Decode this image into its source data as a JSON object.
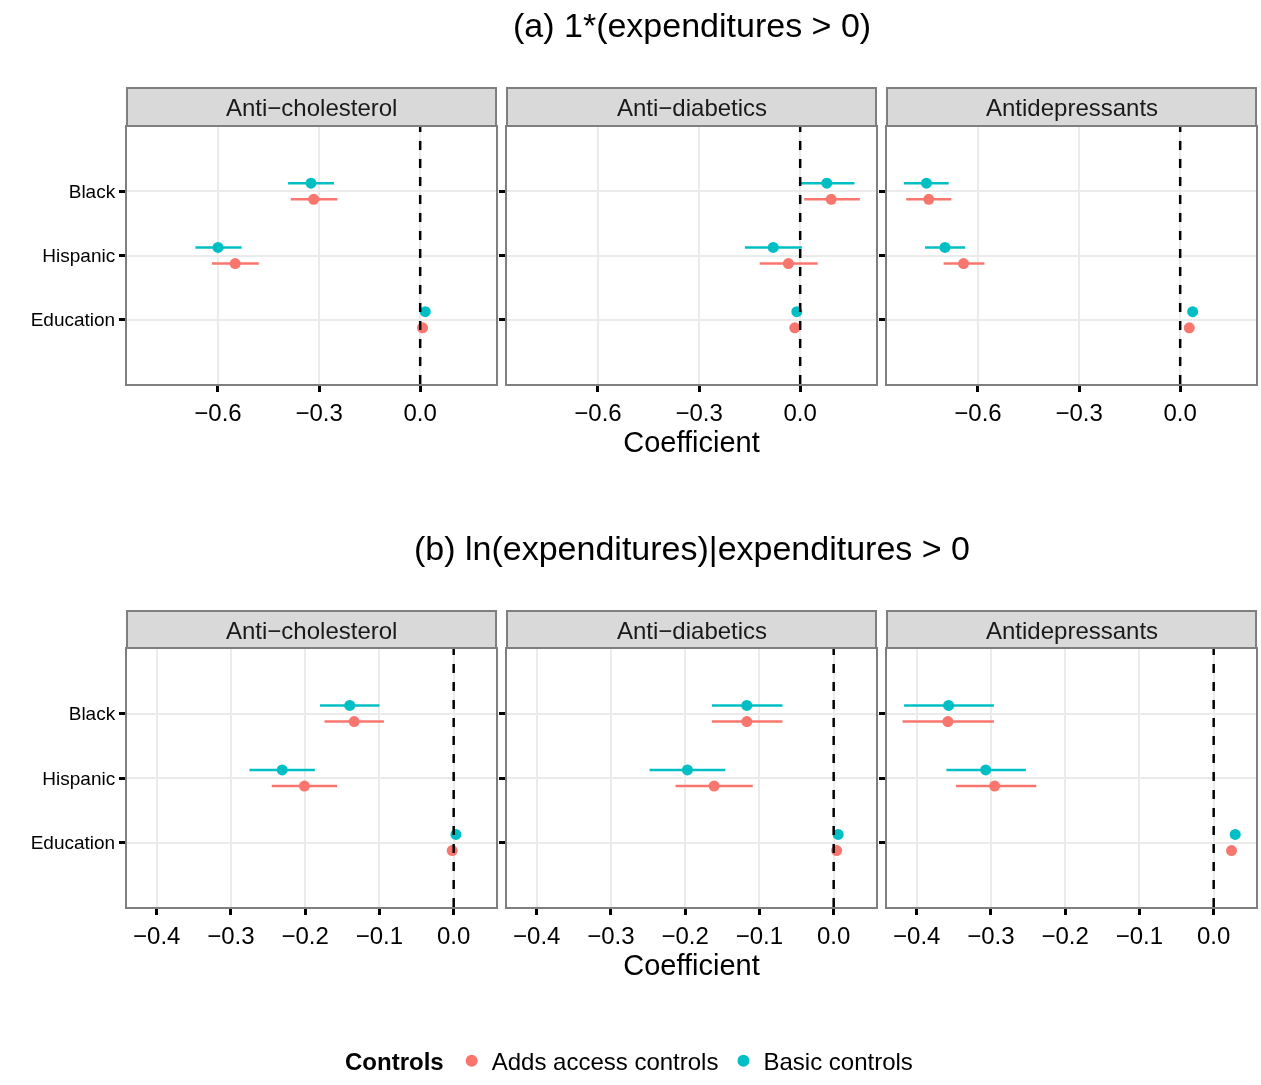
{
  "chart_data": [
    {
      "type": "scatter",
      "title": "Anti−cholesterol",
      "annotations": [
        "(a) 1*(expenditures > 0)"
      ],
      "orientation": "horizontal",
      "categories": [
        "Black",
        "Hispanic",
        "Education"
      ],
      "xlim": [
        -0.87,
        0.225
      ],
      "xticks": [
        {
          "value": -0.6,
          "label": "−0.6"
        },
        {
          "value": -0.3,
          "label": "−0.3"
        },
        {
          "value": 0,
          "label": "0.0"
        }
      ],
      "grid": true,
      "legend": "bottom",
      "marker": "circle",
      "ref_lines": [
        {
          "axis": "x",
          "value": 0,
          "line_style": "dashed",
          "color": "#000000"
        }
      ],
      "series": [
        {
          "name": "Adds access controls",
          "color": "#f8766d",
          "values": [
            -0.316,
            -0.549,
            0.007
          ],
          "errors": [
            [
              -0.384,
              -0.246
            ],
            [
              -0.618,
              -0.479
            ],
            null
          ]
        },
        {
          "name": "Basic controls",
          "color": "#00bfc4",
          "values": [
            -0.324,
            -0.6,
            0.015
          ],
          "errors": [
            [
              -0.392,
              -0.256
            ],
            [
              -0.667,
              -0.53
            ],
            null
          ]
        }
      ]
    },
    {
      "type": "scatter",
      "title": "Anti−diabetics",
      "xlabel": "Coefficient",
      "orientation": "horizontal",
      "categories": [
        "Black",
        "Hispanic",
        "Education"
      ],
      "xlim": [
        -0.87,
        0.225
      ],
      "xticks": [
        {
          "value": -0.6,
          "label": "−0.6"
        },
        {
          "value": -0.3,
          "label": "−0.3"
        },
        {
          "value": 0,
          "label": "0.0"
        }
      ],
      "tick_labels": "x",
      "grid": true,
      "legend": "bottom",
      "marker": "circle",
      "ref_lines": [
        {
          "axis": "x",
          "value": 0,
          "line_style": "dashed",
          "color": "#000000"
        }
      ],
      "series": [
        {
          "name": "Adds access controls",
          "color": "#f8766d",
          "values": [
            0.092,
            -0.035,
            -0.016
          ],
          "errors": [
            [
              0.012,
              0.177
            ],
            [
              -0.12,
              0.052
            ],
            null
          ]
        },
        {
          "name": "Basic controls",
          "color": "#00bfc4",
          "values": [
            0.079,
            -0.08,
            -0.01
          ],
          "errors": [
            [
              -0.002,
              0.161
            ],
            [
              -0.164,
              0.005
            ],
            null
          ]
        }
      ]
    },
    {
      "type": "scatter",
      "title": "Antidepressants",
      "orientation": "horizontal",
      "categories": [
        "Black",
        "Hispanic",
        "Education"
      ],
      "xlim": [
        -0.87,
        0.225
      ],
      "xticks": [
        {
          "value": -0.6,
          "label": "−0.6"
        },
        {
          "value": -0.3,
          "label": "−0.3"
        },
        {
          "value": 0,
          "label": "0.0"
        }
      ],
      "tick_labels": "x",
      "grid": true,
      "legend": "bottom",
      "marker": "circle",
      "ref_lines": [
        {
          "axis": "x",
          "value": 0,
          "line_style": "dashed",
          "color": "#000000"
        }
      ],
      "series": [
        {
          "name": "Adds access controls",
          "color": "#f8766d",
          "values": [
            -0.746,
            -0.643,
            0.027
          ],
          "errors": [
            [
              -0.813,
              -0.679
            ],
            [
              -0.702,
              -0.581
            ],
            null
          ]
        },
        {
          "name": "Basic controls",
          "color": "#00bfc4",
          "values": [
            -0.753,
            -0.698,
            0.037
          ],
          "errors": [
            [
              -0.82,
              -0.687
            ],
            [
              -0.757,
              -0.638
            ],
            null
          ]
        }
      ]
    },
    {
      "type": "scatter",
      "title": "Anti−cholesterol",
      "annotations": [
        "(b) ln(expenditures)|expenditures > 0"
      ],
      "orientation": "horizontal",
      "categories": [
        "Black",
        "Hispanic",
        "Education"
      ],
      "xlim": [
        -0.44,
        0.057
      ],
      "xticks": [
        {
          "value": -0.4,
          "label": "−0.4"
        },
        {
          "value": -0.3,
          "label": "−0.3"
        },
        {
          "value": -0.2,
          "label": "−0.2"
        },
        {
          "value": -0.1,
          "label": "−0.1"
        },
        {
          "value": 0,
          "label": "0.0"
        }
      ],
      "grid": true,
      "legend": "bottom",
      "marker": "circle",
      "ref_lines": [
        {
          "axis": "x",
          "value": 0,
          "line_style": "dashed",
          "color": "#000000"
        }
      ],
      "series": [
        {
          "name": "Adds access controls",
          "color": "#f8766d",
          "values": [
            -0.134,
            -0.201,
            -0.002
          ],
          "errors": [
            [
              -0.174,
              -0.094
            ],
            [
              -0.245,
              -0.157
            ],
            null
          ]
        },
        {
          "name": "Basic controls",
          "color": "#00bfc4",
          "values": [
            -0.14,
            -0.231,
            0.003
          ],
          "errors": [
            [
              -0.18,
              -0.1
            ],
            [
              -0.275,
              -0.187
            ],
            null
          ]
        }
      ]
    },
    {
      "type": "scatter",
      "title": "Anti−diabetics",
      "xlabel": "Coefficient",
      "orientation": "horizontal",
      "categories": [
        "Black",
        "Hispanic",
        "Education"
      ],
      "xlim": [
        -0.44,
        0.057
      ],
      "xticks": [
        {
          "value": -0.4,
          "label": "−0.4"
        },
        {
          "value": -0.3,
          "label": "−0.3"
        },
        {
          "value": -0.2,
          "label": "−0.2"
        },
        {
          "value": -0.1,
          "label": "−0.1"
        },
        {
          "value": 0,
          "label": "0.0"
        }
      ],
      "tick_labels": "x",
      "grid": true,
      "legend": "bottom",
      "marker": "circle",
      "ref_lines": [
        {
          "axis": "x",
          "value": 0,
          "line_style": "dashed",
          "color": "#000000"
        }
      ],
      "series": [
        {
          "name": "Adds access controls",
          "color": "#f8766d",
          "values": [
            -0.117,
            -0.161,
            0.004
          ],
          "errors": [
            [
              -0.164,
              -0.069
            ],
            [
              -0.213,
              -0.109
            ],
            null
          ]
        },
        {
          "name": "Basic controls",
          "color": "#00bfc4",
          "values": [
            -0.117,
            -0.197,
            0.006
          ],
          "errors": [
            [
              -0.164,
              -0.069
            ],
            [
              -0.248,
              -0.146
            ],
            null
          ]
        }
      ]
    },
    {
      "type": "scatter",
      "title": "Antidepressants",
      "orientation": "horizontal",
      "categories": [
        "Black",
        "Hispanic",
        "Education"
      ],
      "xlim": [
        -0.44,
        0.057
      ],
      "xticks": [
        {
          "value": -0.4,
          "label": "−0.4"
        },
        {
          "value": -0.3,
          "label": "−0.3"
        },
        {
          "value": -0.2,
          "label": "−0.2"
        },
        {
          "value": -0.1,
          "label": "−0.1"
        },
        {
          "value": 0,
          "label": "0.0"
        }
      ],
      "tick_labels": "x",
      "grid": true,
      "marker": "circle",
      "legend": "bottom",
      "legend_title": "Controls",
      "ref_lines": [
        {
          "axis": "x",
          "value": 0,
          "line_style": "dashed",
          "color": "#000000"
        }
      ],
      "series": [
        {
          "name": "Adds access controls",
          "color": "#f8766d",
          "values": [
            -0.358,
            -0.295,
            0.024
          ],
          "errors": [
            [
              -0.419,
              -0.296
            ],
            [
              -0.347,
              -0.239
            ],
            null
          ]
        },
        {
          "name": "Basic controls",
          "color": "#00bfc4",
          "values": [
            -0.357,
            -0.307,
            0.029
          ],
          "errors": [
            [
              -0.417,
              -0.296
            ],
            [
              -0.36,
              -0.253
            ],
            null
          ]
        }
      ]
    }
  ]
}
